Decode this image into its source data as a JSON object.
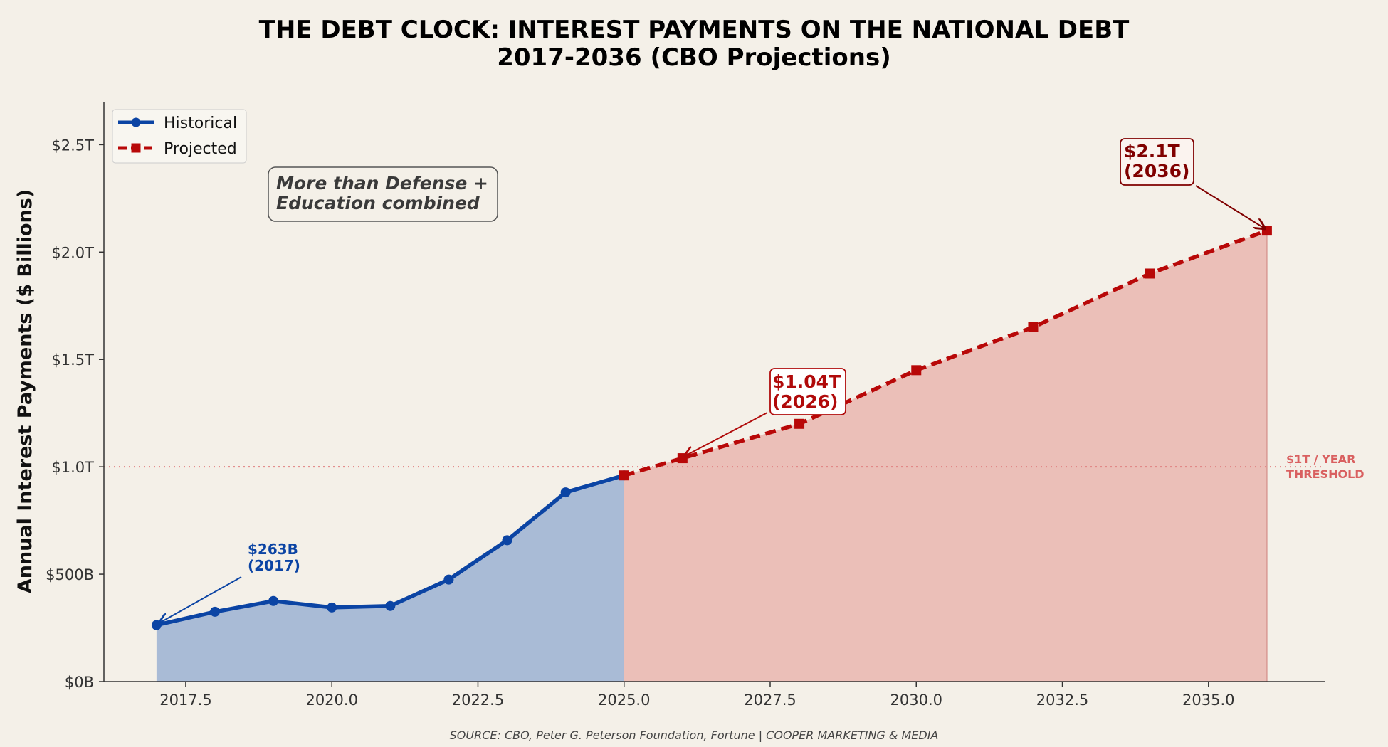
{
  "chart_data": {
    "type": "line",
    "title": "THE DEBT CLOCK: INTEREST PAYMENTS ON THE NATIONAL DEBT",
    "subtitle": "2017-2036 (CBO Projections)",
    "xlabel": "",
    "ylabel": "Annual Interest Payments ($ Billions)",
    "xlim": [
      2016.1,
      2037
    ],
    "ylim": [
      0,
      2700
    ],
    "x_ticks": [
      2017.5,
      2020.0,
      2022.5,
      2025.0,
      2027.5,
      2030.0,
      2032.5,
      2035.0
    ],
    "x_tick_labels": [
      "2017.5",
      "2020.0",
      "2022.5",
      "2025.0",
      "2027.5",
      "2030.0",
      "2032.5",
      "2035.0"
    ],
    "y_ticks": [
      0,
      500,
      1000,
      1500,
      2000,
      2500
    ],
    "y_tick_labels": [
      "$0B",
      "$500B",
      "$1.0T",
      "$1.5T",
      "$2.0T",
      "$2.5T"
    ],
    "grid": false,
    "legend_position": "top-left",
    "series": [
      {
        "name": "Historical",
        "style": "solid-circle",
        "color": "#0b44a4",
        "fill": "#a9bbd6",
        "x": [
          2017,
          2018,
          2019,
          2020,
          2021,
          2022,
          2023,
          2024,
          2025
        ],
        "y": [
          263,
          325,
          375,
          345,
          352,
          475,
          658,
          881,
          960
        ]
      },
      {
        "name": "Projected",
        "style": "dashed-square",
        "color": "#b80808",
        "fill": "#ebbfb8",
        "x": [
          2025,
          2026,
          2028,
          2030,
          2032,
          2034,
          2036
        ],
        "y": [
          960,
          1040,
          1200,
          1450,
          1650,
          1900,
          2100
        ]
      }
    ],
    "reference_line": {
      "y": 1000,
      "label_lines": [
        "$1T / YEAR",
        "THRESHOLD"
      ],
      "color": "#e08080"
    },
    "annotations": [
      {
        "lines": [
          "$263B",
          "(2017)"
        ],
        "style": "blue-plain",
        "x": 2017,
        "y": 263
      },
      {
        "lines": [
          "$1.04T",
          "(2026)"
        ],
        "style": "red-box",
        "x": 2026,
        "y": 1040
      },
      {
        "lines": [
          "$2.1T",
          "(2036)"
        ],
        "style": "dark-box",
        "x": 2036,
        "y": 2100
      }
    ],
    "note_lines": [
      "More than Defense +",
      "Education combined"
    ],
    "source": "SOURCE: CBO, Peter G. Peterson Foundation, Fortune  |  COOPER MARKETING & MEDIA"
  }
}
